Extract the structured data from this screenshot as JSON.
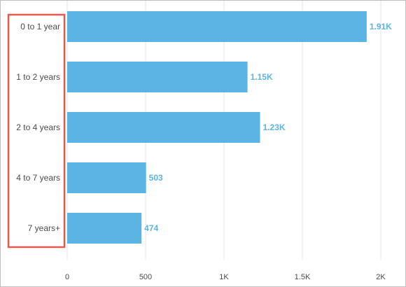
{
  "chart_data": {
    "type": "bar",
    "orientation": "horizontal",
    "categories": [
      "0 to 1 year",
      "1 to 2 years",
      "2 to 4 years",
      "4 to 7 years",
      "7 years+"
    ],
    "values": [
      1910,
      1150,
      1230,
      503,
      474
    ],
    "data_labels": [
      "1.91K",
      "1.15K",
      "1.23K",
      "503",
      "474"
    ],
    "x_ticks": [
      0,
      500,
      1000,
      1500,
      2000
    ],
    "x_tick_labels": [
      "0",
      "500",
      "1K",
      "1.5K",
      "2K"
    ],
    "xlim": [
      0,
      2000
    ],
    "grid": "vertical",
    "title": "",
    "xlabel": "",
    "ylabel": "",
    "colors": {
      "bar": "#5cb4e5",
      "data_label": "#5cb4e5",
      "grid": "#e6e6e6",
      "highlight_box": "#e8584c"
    }
  }
}
